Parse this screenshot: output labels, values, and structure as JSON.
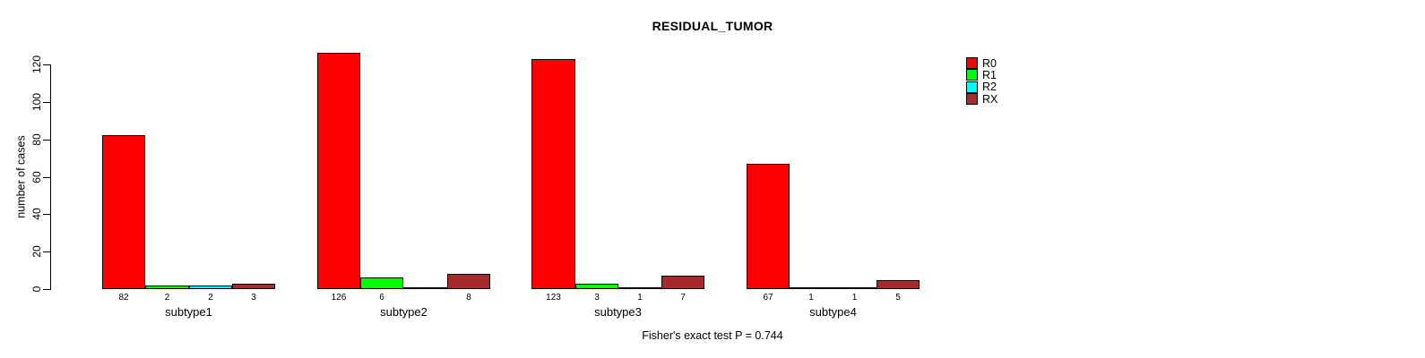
{
  "chart_data": {
    "type": "bar",
    "title": "RESIDUAL_TUMOR",
    "ylabel": "number of cases",
    "annotation": "Fisher's exact test P = 0.744",
    "categories": [
      "subtype1",
      "subtype2",
      "subtype3",
      "subtype4"
    ],
    "series": [
      {
        "name": "R0",
        "color": "#FF0000",
        "values": [
          82,
          126,
          123,
          67
        ]
      },
      {
        "name": "R1",
        "color": "#00FF00",
        "values": [
          2,
          6,
          3,
          1
        ]
      },
      {
        "name": "R2",
        "color": "#00FFFF",
        "values": [
          2,
          0,
          1,
          1
        ]
      },
      {
        "name": "RX",
        "color": "#A52A2A",
        "values": [
          3,
          8,
          7,
          5
        ]
      }
    ],
    "bar_labels": [
      [
        "82",
        "2",
        "2",
        "3"
      ],
      [
        "126",
        "6",
        "",
        "8"
      ],
      [
        "123",
        "3",
        "1",
        "7"
      ],
      [
        "67",
        "1",
        "1",
        "5"
      ]
    ],
    "yticks": [
      0,
      20,
      40,
      60,
      80,
      100,
      120
    ],
    "ylim": [
      0,
      130
    ],
    "grid": false,
    "legend_position": "top-right"
  }
}
